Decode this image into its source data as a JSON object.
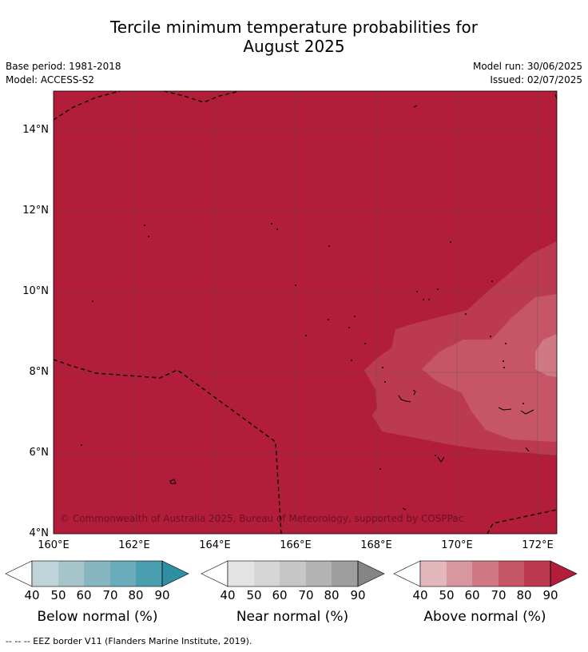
{
  "title_line1": "Tercile minimum temperature probabilities for",
  "title_line2": "August 2025",
  "base_period": "Base period: 1981-2018",
  "model": "Model: ACCESS-S2",
  "model_run": "Model run: 30/06/2025",
  "issued": "Issued: 02/07/2025",
  "map": {
    "lat_labels": [
      "4°N",
      "6°N",
      "8°N",
      "10°N",
      "12°N",
      "14°N"
    ],
    "lon_labels": [
      "160°E",
      "162°E",
      "164°E",
      "166°E",
      "168°E",
      "170°E",
      "172°E"
    ],
    "copyright": "© Commonwealth of Australia 2025, Bureau of Meteorology, supported by COSPPac",
    "colors": {
      "above_90": "#b21d3a",
      "above_80": "#bb3a50",
      "above_70": "#c65565",
      "above_60": "#d07883",
      "grid": "#555555",
      "eez_border": "#000000"
    }
  },
  "colorbars": [
    {
      "name": "Below normal (%)",
      "ticks": [
        "40",
        "50",
        "60",
        "70",
        "80",
        "90"
      ],
      "colors": [
        "#ffffff",
        "#bfd4d9",
        "#a5c5cb",
        "#87b6c1",
        "#6aacbb",
        "#4a9fae",
        "#2e8fa3"
      ]
    },
    {
      "name": "Near normal (%)",
      "ticks": [
        "40",
        "50",
        "60",
        "70",
        "80",
        "90"
      ],
      "colors": [
        "#ffffff",
        "#e3e3e3",
        "#d6d6d6",
        "#c6c6c6",
        "#b3b3b3",
        "#9e9e9e",
        "#858585"
      ]
    },
    {
      "name": "Above normal (%)",
      "ticks": [
        "40",
        "50",
        "60",
        "70",
        "80",
        "90"
      ],
      "colors": [
        "#ffffff",
        "#e3b8bd",
        "#d8979e",
        "#d07883",
        "#c65565",
        "#bb3a50",
        "#b21d3a"
      ]
    }
  ],
  "footnote": "--  --  -- EEZ border V11 (Flanders Marine Institute, 2019)."
}
